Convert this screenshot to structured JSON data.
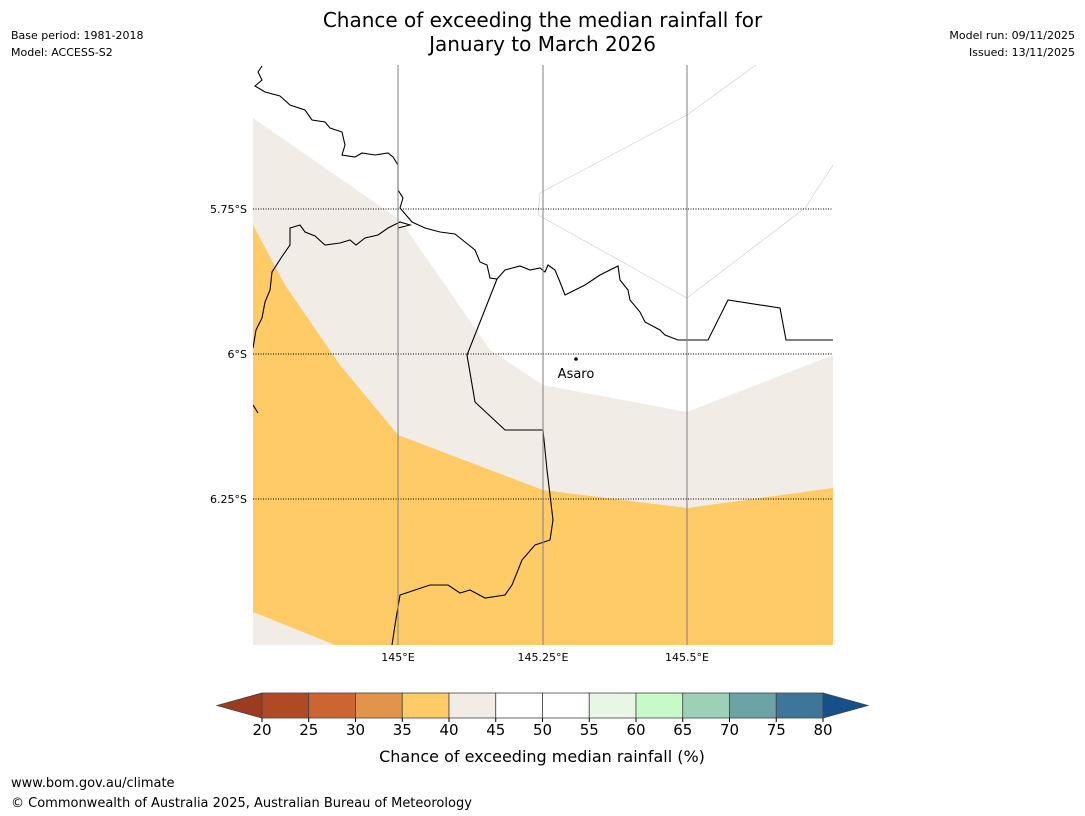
{
  "title": {
    "line1": "Chance of exceeding the median rainfall for",
    "line2": "January to March 2026"
  },
  "meta": {
    "base_period": "Base period: 1981-2018",
    "model": "Model: ACCESS-S2",
    "model_run": "Model run: 09/11/2025",
    "issued": "Issued: 13/11/2025"
  },
  "map": {
    "lat_labels": [
      "5.75°S",
      "6°S",
      "6.25°S"
    ],
    "lon_labels": [
      "145°E",
      "145.25°E",
      "145.5°E"
    ],
    "place": "Asaro"
  },
  "colorbar": {
    "label": "Chance of exceeding median rainfall (%)",
    "ticks": [
      "20",
      "25",
      "30",
      "35",
      "40",
      "45",
      "50",
      "55",
      "60",
      "65",
      "70",
      "75",
      "80"
    ],
    "colors": [
      "#b04a25",
      "#cc6532",
      "#e1944a",
      "#fecb66",
      "#f1ece6",
      "#ffffff",
      "#ffffff",
      "#e8f6e6",
      "#c8fac8",
      "#9dd0b8",
      "#6ca4a6",
      "#3e7699"
    ],
    "under_color": "#9c3a22",
    "over_color": "#15508a"
  },
  "footer": {
    "url": "www.bom.gov.au/climate",
    "copyright": "© Commonwealth of Australia 2025, Australian Bureau of Meteorology"
  }
}
